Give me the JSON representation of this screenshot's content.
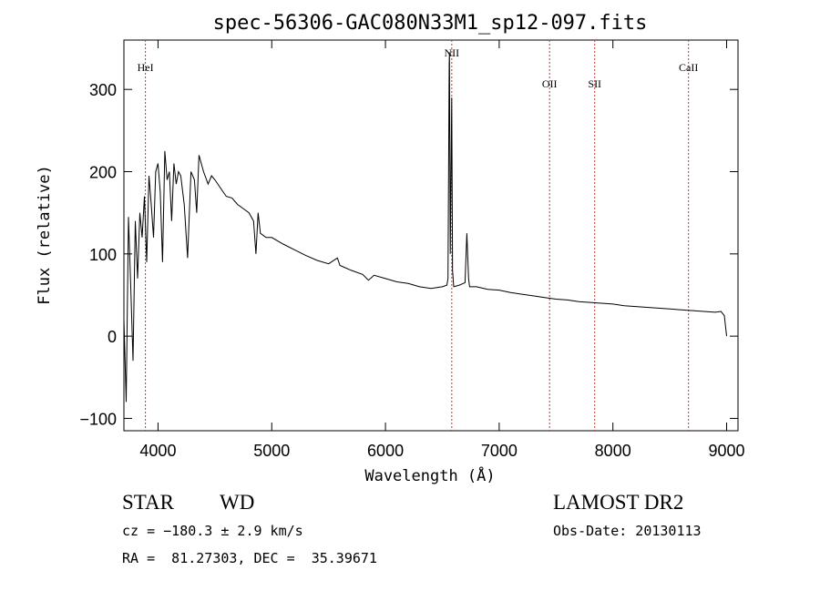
{
  "chart_data": {
    "type": "line",
    "title": "spec-56306-GAC080N33M1_sp12-097.fits",
    "xlabel": "Wavelength (Å)",
    "ylabel": "Flux (relative)",
    "xlim": [
      3700,
      9100
    ],
    "ylim": [
      -115,
      360
    ],
    "x_ticks": [
      4000,
      5000,
      6000,
      7000,
      8000,
      9000
    ],
    "y_ticks": [
      -100,
      0,
      100,
      200,
      300
    ],
    "series": [
      {
        "color": "#000000",
        "x": [
          3700,
          3720,
          3740,
          3760,
          3780,
          3800,
          3820,
          3840,
          3860,
          3880,
          3900,
          3920,
          3940,
          3960,
          3980,
          4000,
          4020,
          4040,
          4060,
          4080,
          4100,
          4120,
          4140,
          4160,
          4180,
          4200,
          4230,
          4260,
          4290,
          4320,
          4340,
          4360,
          4400,
          4440,
          4471,
          4500,
          4550,
          4600,
          4650,
          4700,
          4750,
          4800,
          4840,
          4861,
          4880,
          4900,
          4950,
          5000,
          5100,
          5200,
          5300,
          5400,
          5500,
          5577,
          5600,
          5700,
          5800,
          5850,
          5900,
          6000,
          6100,
          6200,
          6300,
          6400,
          6500,
          6540,
          6550,
          6560,
          6563,
          6570,
          6583,
          6590,
          6600,
          6650,
          6700,
          6716,
          6731,
          6740,
          6800,
          6900,
          7000,
          7100,
          7200,
          7300,
          7400,
          7500,
          7600,
          7700,
          7800,
          7900,
          8000,
          8100,
          8200,
          8300,
          8400,
          8500,
          8600,
          8700,
          8800,
          8900,
          8950,
          8980,
          9000
        ],
        "y": [
          20,
          -80,
          145,
          60,
          -30,
          140,
          70,
          150,
          120,
          170,
          90,
          195,
          160,
          120,
          200,
          210,
          175,
          90,
          225,
          190,
          200,
          140,
          210,
          185,
          200,
          195,
          160,
          95,
          200,
          190,
          150,
          220,
          200,
          185,
          195,
          190,
          180,
          170,
          168,
          160,
          155,
          150,
          140,
          100,
          150,
          125,
          120,
          120,
          112,
          105,
          98,
          92,
          88,
          95,
          86,
          80,
          75,
          68,
          74,
          70,
          66,
          64,
          60,
          58,
          60,
          62,
          70,
          330,
          345,
          100,
          290,
          80,
          60,
          62,
          65,
          125,
          70,
          60,
          60,
          57,
          56,
          53,
          51,
          49,
          47,
          45,
          44,
          42,
          41,
          40,
          39,
          37,
          36,
          35,
          34,
          33,
          32,
          31,
          30,
          29,
          30,
          25,
          0
        ]
      }
    ],
    "annotations": [
      {
        "label": "HeI",
        "x": 3889
      },
      {
        "label": "NII",
        "x": 6583
      },
      {
        "label": "OII",
        "x": 7443
      },
      {
        "label": "SII",
        "x": 7840
      },
      {
        "label": "CaII",
        "x": 8665
      }
    ]
  },
  "info": {
    "class_label": "STAR",
    "subclass_label": "WD",
    "survey": "LAMOST DR2",
    "cz_text": "cz = −180.3 ± 2.9 km/s",
    "obs_date": "Obs-Date: 20130113",
    "coords": "RA =  81.27303, DEC =  35.39671"
  }
}
